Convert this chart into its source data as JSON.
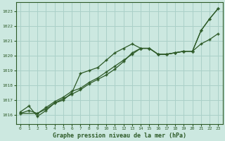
{
  "title": "Graphe pression niveau de la mer (hPa)",
  "bg_color": "#cce8e0",
  "grid_color": "#aad0c8",
  "line_color": "#2d5a27",
  "xlim": [
    -0.5,
    23.5
  ],
  "ylim": [
    1015.4,
    1023.6
  ],
  "yticks": [
    1016,
    1017,
    1018,
    1019,
    1020,
    1021,
    1022,
    1023
  ],
  "xticks": [
    0,
    1,
    2,
    3,
    4,
    5,
    6,
    7,
    8,
    9,
    10,
    11,
    12,
    13,
    14,
    15,
    16,
    17,
    18,
    19,
    20,
    21,
    22,
    23
  ],
  "series1_x": [
    0,
    1,
    2,
    3,
    4,
    5,
    6,
    7,
    8,
    9,
    10,
    11,
    12,
    13,
    14,
    15,
    16,
    17,
    18,
    19,
    20,
    21,
    22,
    23
  ],
  "series1_y": [
    1016.2,
    1016.6,
    1015.9,
    1016.3,
    1016.8,
    1017.0,
    1017.5,
    1018.8,
    1019.0,
    1019.2,
    1019.7,
    1020.2,
    1020.5,
    1020.8,
    1020.5,
    1020.5,
    1020.1,
    1020.1,
    1020.2,
    1020.3,
    1020.3,
    1020.8,
    1021.1,
    1021.5
  ],
  "series2_x": [
    0,
    1,
    2,
    3,
    4,
    5,
    6,
    7,
    8,
    9,
    10,
    11,
    12,
    13,
    14,
    15,
    16,
    17,
    18,
    19,
    20,
    21,
    22,
    23
  ],
  "series2_y": [
    1016.1,
    1016.3,
    1016.1,
    1016.5,
    1016.9,
    1017.2,
    1017.6,
    1017.8,
    1018.2,
    1018.5,
    1018.9,
    1019.3,
    1019.7,
    1020.1,
    1020.5,
    1020.5,
    1020.1,
    1020.1,
    1020.2,
    1020.3,
    1020.3,
    1021.7,
    1022.5,
    1023.2
  ],
  "series3_x": [
    0,
    2,
    3,
    4,
    5,
    6,
    7,
    8,
    9,
    10,
    11,
    12,
    13,
    14,
    15,
    16,
    17,
    18,
    19,
    20,
    21,
    22,
    23
  ],
  "series3_y": [
    1016.1,
    1016.1,
    1016.4,
    1016.8,
    1017.1,
    1017.4,
    1017.7,
    1018.1,
    1018.4,
    1018.7,
    1019.1,
    1019.6,
    1020.2,
    1020.5,
    1020.5,
    1020.1,
    1020.1,
    1020.2,
    1020.3,
    1020.3,
    1021.7,
    1022.5,
    1023.2
  ]
}
